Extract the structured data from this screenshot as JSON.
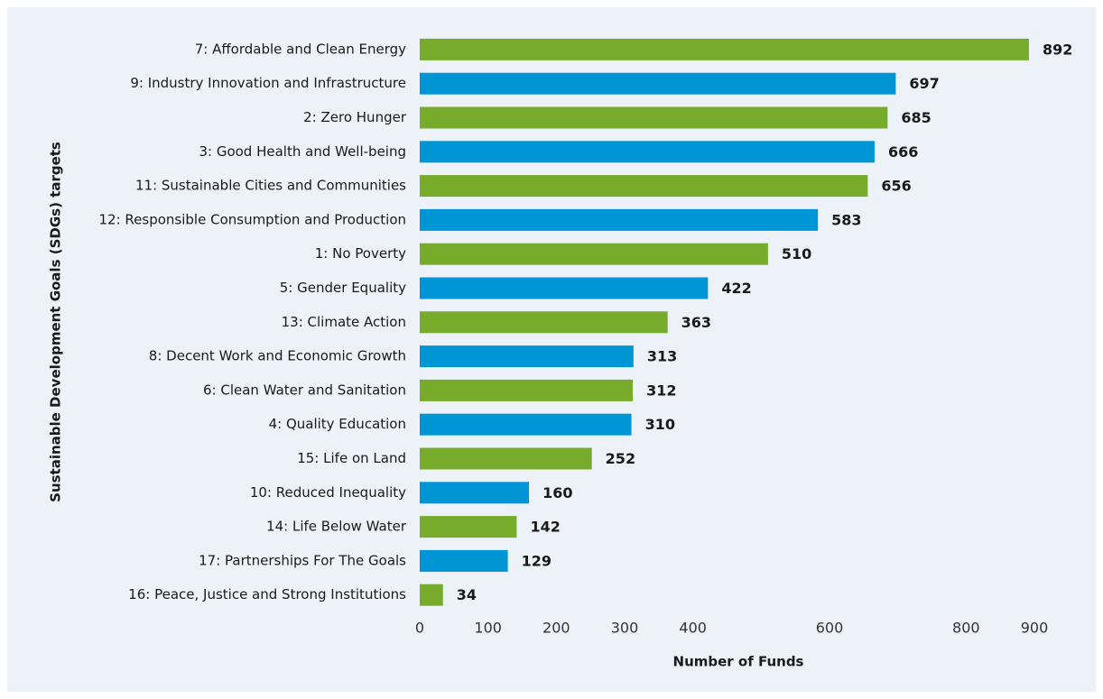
{
  "chart_data": {
    "type": "barh",
    "xlabel": "Number of Funds",
    "ylabel": "Sustainable Development Goals (SDGs) targets",
    "categories": [
      "7: Affordable and Clean Energy",
      "9: Industry Innovation and Infrastructure",
      "2: Zero Hunger",
      "3: Good Health and Well-being",
      "11: Sustainable Cities and Communities",
      "12: Responsible Consumption and Production",
      "1: No Poverty",
      "5: Gender Equality",
      "13: Climate Action",
      "8: Decent Work and Economic Growth",
      "6: Clean Water and Sanitation",
      "4: Quality Education",
      "15: Life on Land",
      "10: Reduced Inequality",
      "14: Life Below Water",
      "17: Partnerships For The Goals",
      "16: Peace, Justice and Strong Institutions"
    ],
    "values": [
      892,
      697,
      685,
      666,
      656,
      583,
      510,
      422,
      363,
      313,
      312,
      310,
      252,
      160,
      142,
      129,
      34
    ],
    "colors": [
      "#76ab2b",
      "#0096d6",
      "#76ab2b",
      "#0096d6",
      "#76ab2b",
      "#0096d6",
      "#76ab2b",
      "#0096d6",
      "#76ab2b",
      "#0096d6",
      "#76ab2b",
      "#0096d6",
      "#76ab2b",
      "#0096d6",
      "#76ab2b",
      "#0096d6",
      "#76ab2b"
    ],
    "xlim": [
      0,
      900
    ],
    "xticks": [
      0,
      100,
      200,
      300,
      400,
      600,
      800,
      900
    ],
    "grid": false
  }
}
